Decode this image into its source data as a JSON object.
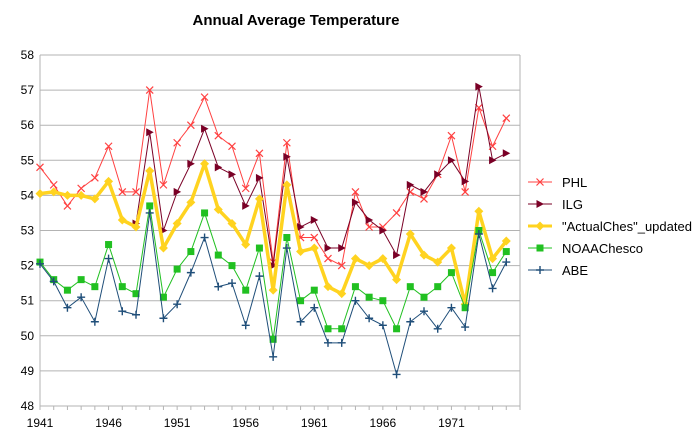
{
  "chart_data": {
    "type": "line",
    "title": "Annual Average Temperature",
    "xlabel": "",
    "ylabel": "",
    "ylim": [
      48,
      58
    ],
    "yticks": [
      48,
      49,
      50,
      51,
      52,
      53,
      54,
      55,
      56,
      57,
      58
    ],
    "xlim": [
      1941,
      1976
    ],
    "xticks": [
      1941,
      1946,
      1951,
      1956,
      1961,
      1966,
      1971
    ],
    "grid": "horizontal",
    "legend": "right",
    "x": [
      1941,
      1942,
      1943,
      1944,
      1945,
      1946,
      1947,
      1948,
      1949,
      1950,
      1951,
      1952,
      1953,
      1954,
      1955,
      1956,
      1957,
      1958,
      1959,
      1960,
      1961,
      1962,
      1963,
      1964,
      1965,
      1966,
      1967,
      1968,
      1969,
      1970,
      1971,
      1972,
      1973,
      1974,
      1975
    ],
    "series": [
      {
        "name": "PHL",
        "color": "#ff4040",
        "marker": "x",
        "width": 1,
        "values": [
          54.8,
          54.3,
          53.7,
          54.2,
          54.5,
          55.4,
          54.1,
          54.1,
          57.0,
          54.3,
          55.5,
          56.0,
          56.8,
          55.7,
          55.4,
          54.2,
          55.2,
          52.1,
          55.5,
          52.8,
          52.8,
          52.2,
          52.0,
          54.1,
          53.1,
          53.1,
          53.5,
          54.1,
          53.9,
          54.6,
          55.7,
          54.1,
          56.5,
          55.4,
          56.2
        ]
      },
      {
        "name": "ILG",
        "color": "#7a0026",
        "marker": "triangle",
        "width": 1,
        "values": [
          null,
          null,
          null,
          null,
          null,
          null,
          null,
          53.2,
          55.8,
          53.0,
          54.1,
          54.9,
          55.9,
          54.8,
          54.6,
          53.7,
          54.5,
          52.0,
          55.1,
          53.1,
          53.3,
          52.5,
          52.5,
          53.8,
          53.3,
          53.0,
          52.3,
          54.3,
          54.1,
          54.6,
          55.0,
          54.4,
          57.1,
          55.0,
          55.2
        ]
      },
      {
        "name": "\"ActualChes\"_updated",
        "color": "#ffd320",
        "marker": "diamond",
        "width": 3.5,
        "values": [
          54.05,
          54.1,
          54.0,
          54.0,
          53.9,
          54.4,
          53.3,
          53.1,
          54.7,
          52.5,
          53.2,
          53.8,
          54.9,
          53.6,
          53.2,
          52.6,
          53.9,
          51.3,
          54.3,
          52.4,
          52.5,
          51.4,
          51.2,
          52.2,
          52.0,
          52.2,
          51.6,
          52.9,
          52.3,
          52.1,
          52.5,
          50.9,
          53.55,
          52.2,
          52.7
        ]
      },
      {
        "name": "NOAAChesco",
        "color": "#21c021",
        "marker": "square",
        "width": 1,
        "values": [
          52.1,
          51.6,
          51.3,
          51.6,
          51.4,
          52.6,
          51.4,
          51.2,
          53.7,
          51.1,
          51.9,
          52.4,
          53.5,
          52.3,
          52.0,
          51.3,
          52.5,
          49.9,
          52.8,
          51.0,
          51.3,
          50.2,
          50.2,
          51.4,
          51.1,
          51.0,
          50.2,
          51.4,
          51.1,
          51.4,
          51.8,
          50.8,
          53.0,
          51.8,
          52.4
        ]
      },
      {
        "name": "ABE",
        "color": "#1f4e79",
        "marker": "plus",
        "width": 1,
        "values": [
          52.05,
          51.55,
          50.8,
          51.1,
          50.4,
          52.2,
          50.7,
          50.6,
          53.5,
          50.5,
          50.9,
          51.8,
          52.8,
          51.4,
          51.5,
          50.3,
          51.7,
          49.4,
          52.5,
          50.4,
          50.8,
          49.8,
          49.8,
          51.0,
          50.5,
          50.3,
          48.9,
          50.4,
          50.7,
          50.2,
          50.8,
          50.25,
          52.9,
          51.35,
          52.1
        ]
      }
    ]
  }
}
